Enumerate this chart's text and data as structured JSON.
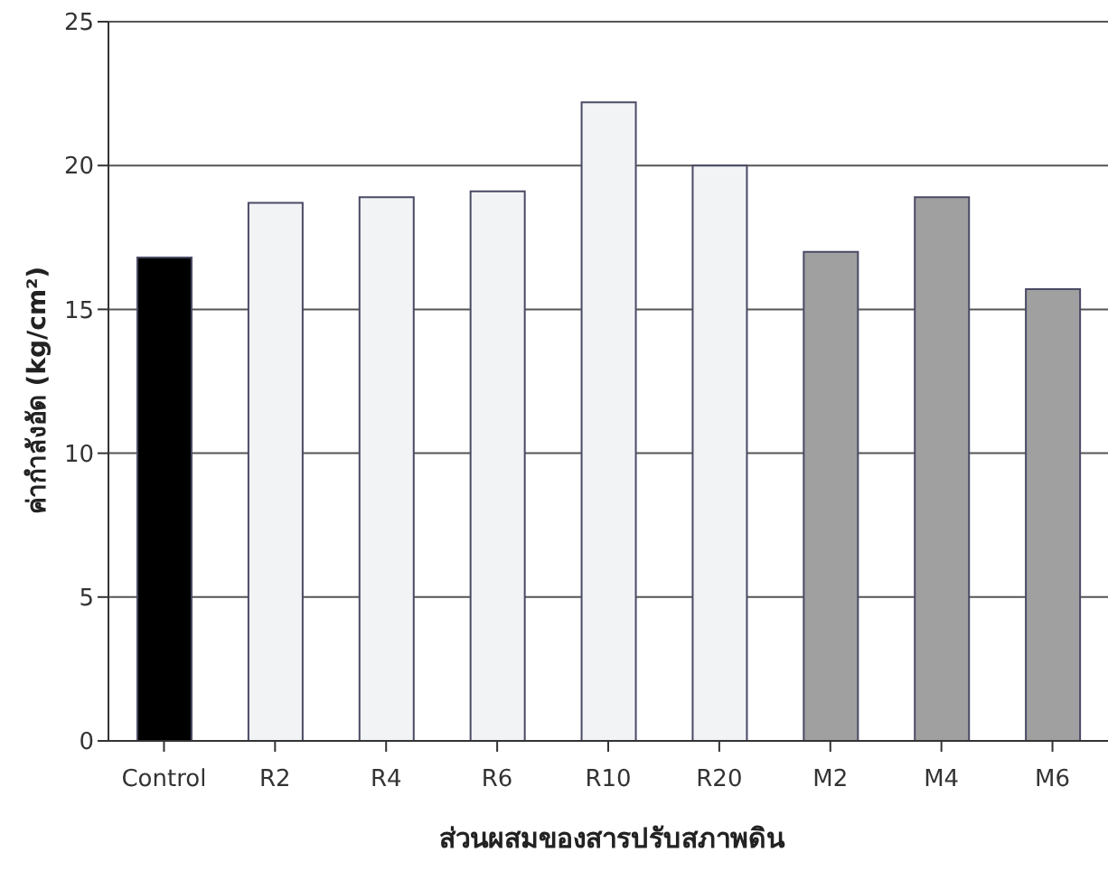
{
  "chart_data": {
    "type": "bar",
    "xlabel": "ส่วนผสมของสารปรับสภาพดิน",
    "ylabel": "ค่ากำลังอัด (kg/cm²)",
    "categories": [
      "Control",
      "R2",
      "R4",
      "R6",
      "R10",
      "R20",
      "M2",
      "M4",
      "M6"
    ],
    "values": [
      16.8,
      18.7,
      18.9,
      19.1,
      22.2,
      20.0,
      17.0,
      18.9,
      15.7
    ],
    "colors": [
      "#000000",
      "#f2f3f5",
      "#f2f3f5",
      "#f2f3f5",
      "#f2f3f5",
      "#f2f3f5",
      "#a0a0a0",
      "#a0a0a0",
      "#a0a0a0"
    ],
    "ylim": [
      0,
      25
    ],
    "yticks": [
      0,
      5,
      10,
      15,
      20,
      25
    ],
    "grid": "y"
  }
}
